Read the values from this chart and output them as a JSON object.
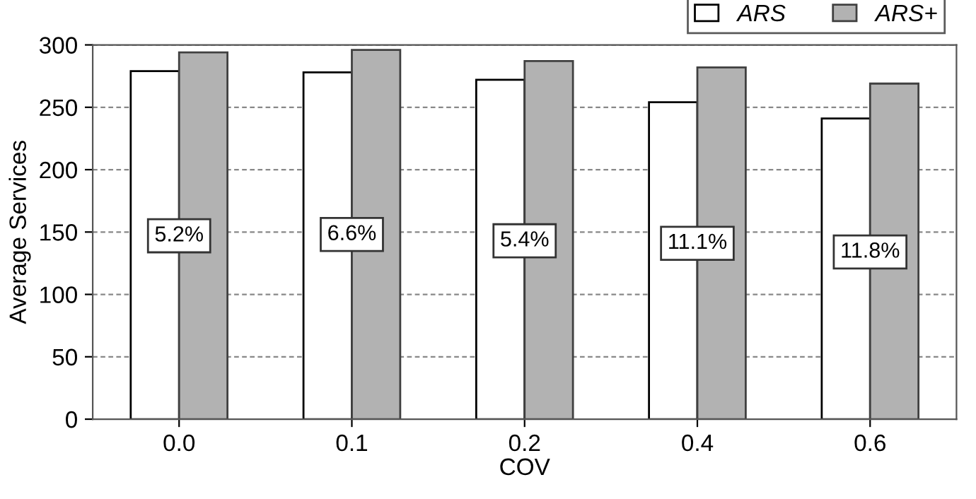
{
  "chart_data": {
    "type": "bar",
    "xlabel": "COV",
    "ylabel": "Average Services",
    "categories": [
      "0.0",
      "0.1",
      "0.2",
      "0.4",
      "0.6"
    ],
    "series": [
      {
        "name": "ARS",
        "color": "#ffffff",
        "values": [
          279,
          278,
          272,
          254,
          241
        ]
      },
      {
        "name": "ARS+",
        "color": "#b2b2b2",
        "values": [
          294,
          296,
          287,
          282,
          269
        ]
      }
    ],
    "ylim": [
      0,
      300
    ],
    "yticks": [
      0,
      50,
      100,
      150,
      200,
      250,
      300
    ],
    "grid": "y",
    "legend": "top right",
    "annotations": [
      {
        "text": "5.2%",
        "x": "0.0",
        "y": 147
      },
      {
        "text": "6.6%",
        "x": "0.1",
        "y": 148
      },
      {
        "text": "5.4%",
        "x": "0.2",
        "y": 143
      },
      {
        "text": "11.1%",
        "x": "0.4",
        "y": 141
      },
      {
        "text": "11.8%",
        "x": "0.6",
        "y": 134
      }
    ]
  }
}
